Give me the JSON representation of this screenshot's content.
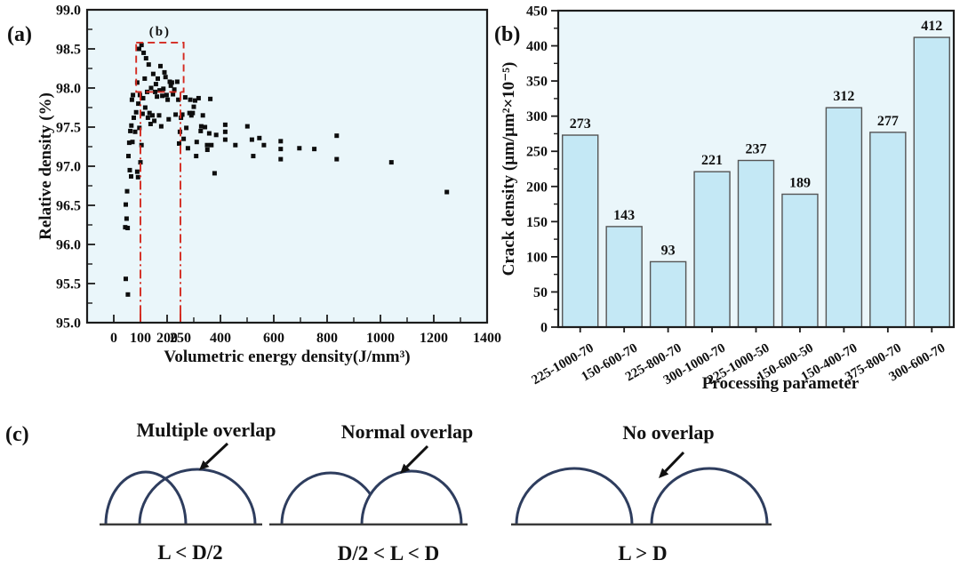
{
  "figure": {
    "background": "#ffffff"
  },
  "colors": {
    "plot_bg": "#eaf6fa",
    "frame": "#1c1c1c",
    "point_black": "#0d0d0d",
    "accent_red": "#d42a20",
    "bar_fill": "#c4e8f5",
    "bar_edge": "#555555",
    "arc_navy": "#2e3d5e",
    "baseline_gray": "#3a3a3a",
    "text_black": "#111111"
  },
  "panels": {
    "a": {
      "letter": "(a)"
    },
    "b": {
      "letter": "(b)"
    },
    "c": {
      "letter": "(c)",
      "items": [
        {
          "title": "Multiple overlap",
          "condition": "L < D/2",
          "overlap": "multiple"
        },
        {
          "title": "Normal overlap",
          "condition": "D/2 < L < D",
          "overlap": "normal"
        },
        {
          "title": "No overlap",
          "condition": "L > D",
          "overlap": "none"
        }
      ]
    }
  },
  "chart_data": [
    {
      "type": "scatter",
      "panel": "a",
      "xlabel": "Volumetric energy density(J/mm³)",
      "ylabel": "Relative density (%)",
      "xlim": [
        -100,
        1400
      ],
      "ylim": [
        95.0,
        99.0
      ],
      "xticks": [
        0,
        200,
        400,
        600,
        800,
        1000,
        1200,
        1400
      ],
      "xticks_red": [
        100,
        250
      ],
      "yticks": [
        95.0,
        95.5,
        96.0,
        96.5,
        97.0,
        97.5,
        98.0,
        98.5,
        99.0
      ],
      "grid": false,
      "marker": "square",
      "annotation": {
        "label": "(b)",
        "box_x": [
          84,
          262
        ],
        "box_y": [
          97.95,
          98.58
        ],
        "guide_lines_x": [
          100,
          250
        ]
      },
      "points": [
        [
          45,
          95.56
        ],
        [
          53,
          95.36
        ],
        [
          45,
          96.51
        ],
        [
          48,
          96.33
        ],
        [
          43,
          96.22
        ],
        [
          52,
          96.21
        ],
        [
          50,
          96.68
        ],
        [
          55,
          97.13
        ],
        [
          60,
          96.95
        ],
        [
          65,
          96.87
        ],
        [
          88,
          96.93
        ],
        [
          91,
          96.86
        ],
        [
          100,
          97.05
        ],
        [
          62,
          97.45
        ],
        [
          66,
          97.52
        ],
        [
          58,
          97.3
        ],
        [
          70,
          97.31
        ],
        [
          75,
          97.62
        ],
        [
          68,
          97.85
        ],
        [
          72,
          97.91
        ],
        [
          80,
          97.44
        ],
        [
          84,
          97.69
        ],
        [
          88,
          98.07
        ],
        [
          92,
          97.8
        ],
        [
          95,
          98.5
        ],
        [
          104,
          98.55
        ],
        [
          96,
          97.49
        ],
        [
          98,
          97.91
        ],
        [
          104,
          97.27
        ],
        [
          108,
          97.67
        ],
        [
          112,
          98.45
        ],
        [
          110,
          97.87
        ],
        [
          116,
          98.12
        ],
        [
          118,
          97.75
        ],
        [
          121,
          98.38
        ],
        [
          125,
          97.95
        ],
        [
          128,
          97.62
        ],
        [
          131,
          98.3
        ],
        [
          134,
          97.68
        ],
        [
          138,
          97.54
        ],
        [
          140,
          98.0
        ],
        [
          145,
          97.65
        ],
        [
          148,
          98.18
        ],
        [
          152,
          97.58
        ],
        [
          155,
          97.95
        ],
        [
          158,
          98.05
        ],
        [
          162,
          97.89
        ],
        [
          165,
          98.12
        ],
        [
          170,
          97.65
        ],
        [
          172,
          97.97
        ],
        [
          175,
          98.28
        ],
        [
          178,
          97.51
        ],
        [
          182,
          97.9
        ],
        [
          186,
          97.99
        ],
        [
          190,
          98.2
        ],
        [
          194,
          98.14
        ],
        [
          198,
          97.91
        ],
        [
          202,
          97.85
        ],
        [
          206,
          97.6
        ],
        [
          210,
          98.08
        ],
        [
          214,
          98.03
        ],
        [
          218,
          98.07
        ],
        [
          222,
          97.92
        ],
        [
          227,
          97.98
        ],
        [
          232,
          97.66
        ],
        [
          238,
          98.08
        ],
        [
          242,
          97.85
        ],
        [
          245,
          97.29
        ],
        [
          248,
          97.44
        ],
        [
          252,
          97.62
        ],
        [
          257,
          97.66
        ],
        [
          262,
          97.35
        ],
        [
          268,
          97.88
        ],
        [
          272,
          97.49
        ],
        [
          278,
          97.23
        ],
        [
          284,
          97.68
        ],
        [
          287,
          97.85
        ],
        [
          291,
          97.65
        ],
        [
          296,
          97.68
        ],
        [
          300,
          97.76
        ],
        [
          305,
          97.84
        ],
        [
          309,
          97.13
        ],
        [
          311,
          97.31
        ],
        [
          318,
          97.87
        ],
        [
          326,
          97.45
        ],
        [
          328,
          97.51
        ],
        [
          334,
          97.65
        ],
        [
          342,
          97.5
        ],
        [
          350,
          97.27
        ],
        [
          351,
          97.21
        ],
        [
          358,
          97.42
        ],
        [
          362,
          97.86
        ],
        [
          366,
          97.27
        ],
        [
          378,
          96.91
        ],
        [
          384,
          97.4
        ],
        [
          418,
          97.53
        ],
        [
          418,
          97.44
        ],
        [
          418,
          97.34
        ],
        [
          456,
          97.27
        ],
        [
          501,
          97.51
        ],
        [
          518,
          97.34
        ],
        [
          523,
          97.13
        ],
        [
          546,
          97.36
        ],
        [
          563,
          97.27
        ],
        [
          626,
          97.32
        ],
        [
          626,
          97.22
        ],
        [
          626,
          97.09
        ],
        [
          696,
          97.23
        ],
        [
          752,
          97.22
        ],
        [
          836,
          97.39
        ],
        [
          836,
          97.09
        ],
        [
          1041,
          97.05
        ],
        [
          1249,
          96.67
        ]
      ]
    },
    {
      "type": "bar",
      "panel": "b",
      "xlabel": "Processing parameter",
      "ylabel": "Crack density (μm/μm²×10⁻⁵)",
      "ylim": [
        0,
        450
      ],
      "ytick_step": 50,
      "ytick_minor_step": 25,
      "categories": [
        "225-1000-70",
        "150-600-70",
        "225-800-70",
        "300-1000-70",
        "225-1000-50",
        "150-600-50",
        "150-400-70",
        "375-800-70",
        "300-600-70"
      ],
      "values": [
        273,
        143,
        93,
        221,
        237,
        189,
        312,
        277,
        412
      ],
      "highlight_index": 2,
      "highlight_color": "#d42a20"
    }
  ]
}
